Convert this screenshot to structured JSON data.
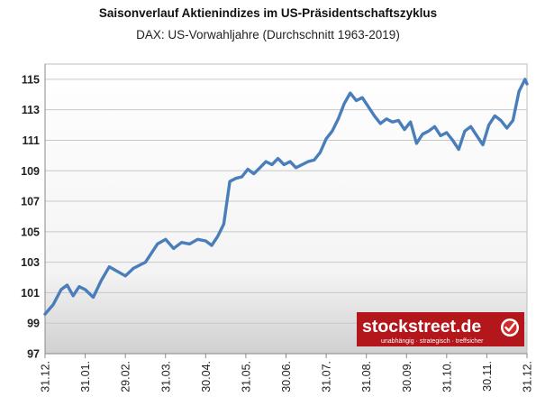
{
  "chart_data": {
    "type": "line",
    "title": "Saisonverlauf Aktienindizes im US-Präsidentschaftszyklus",
    "subtitle": "DAX: US-Vorwahljahre (Durchschnitt 1963-2019)",
    "xlabel": "",
    "ylabel": "",
    "ylim": [
      97,
      116
    ],
    "yticks": [
      "97",
      "99",
      "101",
      "103",
      "105",
      "107",
      "109",
      "111",
      "113",
      "115"
    ],
    "xticks": [
      "31.12.",
      "31.01.",
      "29.02.",
      "31.03.",
      "30.04.",
      "31.05.",
      "30.06.",
      "31.07.",
      "31.08.",
      "30.09.",
      "31.10.",
      "30.11.",
      "31.12."
    ],
    "grid": true,
    "legend": "none",
    "colors": {
      "line": "#4a7ebb",
      "logo_bg": "#b3161b"
    },
    "series": [
      {
        "x": [
          0,
          0.2,
          0.4,
          0.55,
          0.7,
          0.85,
          1.0,
          1.2,
          1.4,
          1.6,
          1.8,
          2.0,
          2.2,
          2.5,
          2.8,
          3.0,
          3.2,
          3.4,
          3.6,
          3.8,
          4.0,
          4.15,
          4.3,
          4.45,
          4.6,
          4.75,
          4.9,
          5.05,
          5.2,
          5.35,
          5.5,
          5.65,
          5.8,
          5.95,
          6.1,
          6.25,
          6.4,
          6.55,
          6.7,
          6.85,
          7.0,
          7.15,
          7.3,
          7.45,
          7.6,
          7.75,
          7.9,
          8.05,
          8.2,
          8.35,
          8.5,
          8.65,
          8.8,
          8.95,
          9.1,
          9.25,
          9.4,
          9.55,
          9.7,
          9.85,
          10.0,
          10.15,
          10.3,
          10.45,
          10.6,
          10.75,
          10.9,
          11.05,
          11.2,
          11.35,
          11.5,
          11.65,
          11.8,
          11.95,
          12.0
        ],
        "values": [
          99.6,
          100.2,
          101.2,
          101.5,
          100.8,
          101.4,
          101.2,
          100.7,
          101.8,
          102.7,
          102.4,
          102.1,
          102.6,
          103.0,
          104.2,
          104.5,
          103.9,
          104.3,
          104.2,
          104.5,
          104.4,
          104.1,
          104.7,
          105.5,
          108.3,
          108.5,
          108.6,
          109.1,
          108.8,
          109.2,
          109.6,
          109.4,
          109.8,
          109.4,
          109.6,
          109.2,
          109.4,
          109.6,
          109.7,
          110.2,
          111.1,
          111.6,
          112.4,
          113.4,
          114.1,
          113.6,
          113.8,
          113.2,
          112.6,
          112.1,
          112.4,
          112.2,
          112.3,
          111.7,
          112.2,
          110.8,
          111.4,
          111.6,
          111.9,
          111.3,
          111.5,
          111.0,
          110.4,
          111.6,
          111.9,
          111.3,
          110.7,
          112.0,
          112.6,
          112.3,
          111.8,
          112.3,
          114.2,
          115.0,
          114.7
        ]
      }
    ]
  },
  "watermark": {
    "brand": "stockstreet.de",
    "tagline": "unabhängig · strategisch · treffsicher",
    "icon": "checkmark-badge-icon"
  }
}
